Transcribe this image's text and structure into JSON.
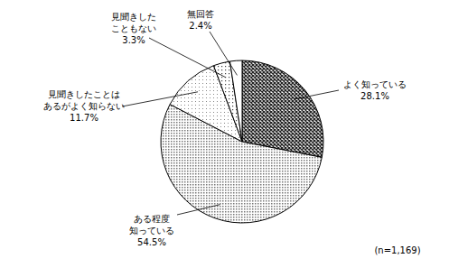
{
  "chart_data": {
    "type": "pie",
    "categories": [
      "よく知っている",
      "ある程度\n知っている",
      "見聞きしたことは\nあるがよく知らない",
      "見聞きした\nこともない",
      "無回答"
    ],
    "values": [
      28.1,
      54.5,
      11.7,
      3.3,
      2.4
    ],
    "value_labels": [
      "28.1%",
      "54.5%",
      "11.7%",
      "3.3%",
      "2.4%"
    ],
    "colors": [
      "#3a3a3a",
      "#c4c4c4",
      "#e2e2e2",
      "#f0f0f0",
      "#ffffff"
    ],
    "data_labels": true,
    "annotations": [
      "(n=1,169)"
    ]
  }
}
